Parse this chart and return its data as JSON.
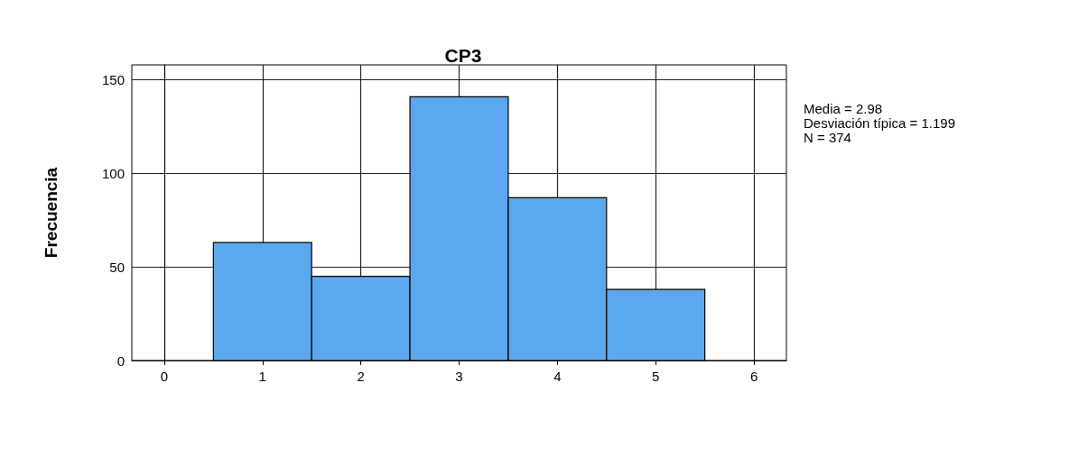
{
  "chart_data": {
    "type": "histogram",
    "title": "CP3",
    "ylabel": "Frecuencia",
    "bins": [
      0.5,
      1.5,
      2.5,
      3.5,
      4.5,
      5.5
    ],
    "values": [
      63,
      45,
      141,
      87,
      38
    ],
    "color": "#5ca8ee",
    "xlim": [
      -0.33,
      6.33
    ],
    "xticks": [
      0,
      1,
      2,
      3,
      4,
      5,
      6
    ],
    "ylim": [
      0,
      158
    ],
    "yticks": [
      0,
      50,
      100,
      150
    ],
    "grid": true,
    "annotations": [
      "Media = 2.98",
      "Desviación típica = 1.199",
      "N = 374"
    ]
  }
}
